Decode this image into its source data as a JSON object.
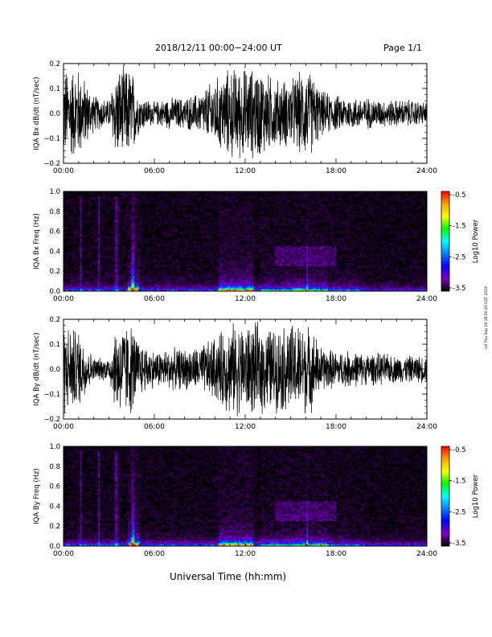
{
  "header": {
    "date_title": "2018/12/11   00:00−24:00 UT",
    "page": "Page 1/1"
  },
  "footer": {
    "x_axis_label": "Universal Time (hh:mm)"
  },
  "side_stamp": "rxt Thu Sep 19 18:50:43 CST 2019",
  "colorbar": {
    "label": "Log10 Power",
    "ticks": [
      "-0.5",
      "-1.5",
      "-2.5",
      "-3.5"
    ],
    "colors": [
      "#ff0000",
      "#ffa000",
      "#ffff00",
      "#00ff00",
      "#00ffff",
      "#0080ff",
      "#0000ff",
      "#8000c0",
      "#000000"
    ]
  },
  "chart_data": [
    {
      "type": "line",
      "ylabel": "IQA Bx dB/dt (nT/sec)",
      "xlim": [
        0,
        24
      ],
      "ylim": [
        -0.2,
        0.2
      ],
      "x_ticks": [
        "00:00",
        "06:00",
        "12:00",
        "18:00",
        "24:00"
      ],
      "y_ticks": [
        "0.2",
        "0.1",
        "0.0",
        "−0.1",
        "−0.2"
      ],
      "envelope": {
        "hours": [
          0,
          1,
          2,
          3,
          3.5,
          4,
          4.5,
          5,
          6,
          7,
          8,
          9,
          10,
          11,
          12,
          13,
          14,
          15,
          16,
          16.5,
          17,
          18,
          19,
          20,
          21,
          22,
          23,
          24
        ],
        "amplitude": [
          0.2,
          0.2,
          0.08,
          0.06,
          0.2,
          0.2,
          0.2,
          0.08,
          0.05,
          0.07,
          0.07,
          0.09,
          0.15,
          0.2,
          0.2,
          0.2,
          0.15,
          0.15,
          0.2,
          0.17,
          0.1,
          0.08,
          0.07,
          0.07,
          0.06,
          0.06,
          0.06,
          0.05
        ]
      }
    },
    {
      "type": "heatmap",
      "ylabel": "IQA Bx Freq (Hz)",
      "xlim": [
        0,
        24
      ],
      "ylim": [
        0,
        1.0
      ],
      "x_ticks": [
        "00:00",
        "06:00",
        "12:00",
        "18:00",
        "24:00"
      ],
      "y_ticks": [
        "1.0",
        "0.8",
        "0.6",
        "0.4",
        "0.2",
        "0.0"
      ],
      "z_range": [
        -3.5,
        -0.5
      ]
    },
    {
      "type": "line",
      "ylabel": "IQA By dB/dt (nT/sec)",
      "xlim": [
        0,
        24
      ],
      "ylim": [
        -0.2,
        0.2
      ],
      "x_ticks": [
        "00:00",
        "06:00",
        "12:00",
        "18:00",
        "24:00"
      ],
      "y_ticks": [
        "0.2",
        "0.1",
        "0.0",
        "−0.1",
        "−0.2"
      ],
      "envelope": {
        "hours": [
          0,
          1,
          2,
          3,
          3.5,
          4,
          4.5,
          5,
          6,
          7,
          8,
          9,
          10,
          11,
          12,
          13,
          14,
          15,
          16,
          16.5,
          17,
          18,
          19,
          20,
          21,
          22,
          23,
          24
        ],
        "amplitude": [
          0.2,
          0.17,
          0.05,
          0.05,
          0.2,
          0.2,
          0.2,
          0.12,
          0.08,
          0.09,
          0.09,
          0.1,
          0.14,
          0.2,
          0.2,
          0.2,
          0.18,
          0.2,
          0.2,
          0.17,
          0.1,
          0.08,
          0.08,
          0.07,
          0.07,
          0.06,
          0.06,
          0.06
        ]
      }
    },
    {
      "type": "heatmap",
      "ylabel": "IQA By Freq (Hz)",
      "xlim": [
        0,
        24
      ],
      "ylim": [
        0,
        1.0
      ],
      "x_ticks": [
        "00:00",
        "06:00",
        "12:00",
        "18:00",
        "24:00"
      ],
      "y_ticks": [
        "1.0",
        "0.8",
        "0.6",
        "0.4",
        "0.2",
        "0.0"
      ],
      "z_range": [
        -3.5,
        -0.5
      ]
    }
  ]
}
